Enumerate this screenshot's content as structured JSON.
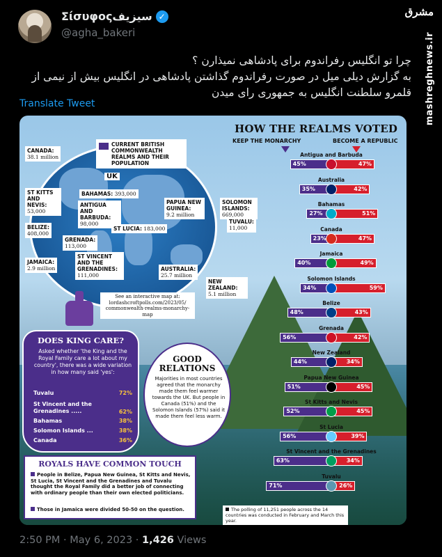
{
  "header": {
    "display_name": "Σίσυφοςسیزیف",
    "handle": "@agha_bakeri"
  },
  "watermark": {
    "logo": "مشرق",
    "url": "mashreghnews.ir"
  },
  "tweet": {
    "line1": "چرا تو انگلیس رفراندوم برای پادشاهی نمیذارن ؟",
    "line2": "به گزارش دیلی میل در صورت رفراندوم گذاشتن پادشاهی در انگلیس بیش از نیمی از قلمرو سلطنت انگلیس به جمهوری رای میدن",
    "translate_label": "Translate Tweet"
  },
  "infographic": {
    "map": {
      "legend": "Current British Commonwealth realms and their population",
      "uk": "UK",
      "labels": [
        {
          "name": "Canada:",
          "pop": "38.1 million"
        },
        {
          "name": "St Kitts and Nevis:",
          "pop": "53,000"
        },
        {
          "name": "Bahamas:",
          "pop": "393,000"
        },
        {
          "name": "Antigua and Barbuda:",
          "pop": "98,000"
        },
        {
          "name": "St Lucia:",
          "pop": "183,000"
        },
        {
          "name": "Belize:",
          "pop": "408,000"
        },
        {
          "name": "Grenada:",
          "pop": "113,000"
        },
        {
          "name": "Jamaica:",
          "pop": "2.9 million"
        },
        {
          "name": "St Vincent and the Grenadines:",
          "pop": "111,000"
        },
        {
          "name": "Papua New Guinea:",
          "pop": "9.2 million"
        },
        {
          "name": "Solomon Islands:",
          "pop": "669,000"
        },
        {
          "name": "Tuvalu:",
          "pop": "11,000"
        },
        {
          "name": "Australia:",
          "pop": "25.7 million"
        },
        {
          "name": "New Zealand:",
          "pop": "5.1 million"
        }
      ],
      "link": "See an interactive map at: lordashcroftpolls.com/2023/05/ commonwealth-realms-monarchy-map"
    },
    "chart_data": {
      "type": "bar",
      "title": "HOW THE REALMS VOTED",
      "keep_label": "KEEP THE MONARCHY",
      "republic_label": "BECOME A REPUBLIC",
      "categories": [
        "Antigua and Barbuda",
        "Australia",
        "Bahamas",
        "Canada",
        "Jamaica",
        "Solomon Islands",
        "Belize",
        "Grenada",
        "New Zealand",
        "Papua New Guinea",
        "St Kitts and Nevis",
        "St Lucia",
        "St Vincent and the Grenadines",
        "Tuvalu"
      ],
      "series": [
        {
          "name": "KEEP THE MONARCHY",
          "values": [
            45,
            35,
            27,
            23,
            40,
            34,
            48,
            56,
            44,
            51,
            52,
            56,
            63,
            71
          ]
        },
        {
          "name": "BECOME A REPUBLIC",
          "values": [
            47,
            42,
            51,
            47,
            49,
            59,
            43,
            42,
            34,
            45,
            45,
            39,
            34,
            26
          ]
        }
      ],
      "keep_labels": [
        "45%",
        "35%",
        "27%",
        "23%",
        "40%",
        "34%",
        "48%",
        "56%",
        "44%",
        "51%",
        "52%",
        "56%",
        "63%",
        "71%"
      ],
      "rep_labels": [
        "47%",
        "42%",
        "51%",
        "47%",
        "49%",
        "59%",
        "43%",
        "42%",
        "34%",
        "45%",
        "45%",
        "39%",
        "34%",
        "26%"
      ],
      "colors": {
        "keep": "#4b2e8a",
        "republic": "#d61f2c"
      }
    },
    "king": {
      "title": "DOES KING CARE?",
      "intro": "Asked whether 'the King and the Royal Family care a lot about my country', there was a wide variation in how many said 'yes':",
      "rows": [
        {
          "name": "Tuvalu",
          "pct": "72%"
        },
        {
          "name": "St Vincent and the Grenadines .....",
          "pct": "62%"
        },
        {
          "name": "Bahamas",
          "pct": "38%"
        },
        {
          "name": "Solomon Islands ...",
          "pct": "38%"
        },
        {
          "name": "Canada",
          "pct": "36%"
        }
      ]
    },
    "relations": {
      "title": "GOOD RELATIONS",
      "text": "Majorities in most countries agreed that the monarchy made them feel warmer towards the UK. But people in Canada (51%) and the Solomon Islands (57%) said it made them feel less warm."
    },
    "royals": {
      "title": "ROYALS HAVE COMMON TOUCH",
      "p1": "People in Belize, Papua New Guinea, St Kitts and Nevis, St Lucia, St Vincent and the Grenadines and Tuvalu thought the Royal Family did a better job of connecting with ordinary people than their own elected politicians.",
      "p2": "Those in Jamaica were divided 50-50 on the question."
    },
    "poll_note": "The polling of 11,251 people across the 14 countries was conducted in February and March this year."
  },
  "meta": {
    "time": "2:50 PM · May 6, 2023 · ",
    "views_count": "1,426",
    "views_label": " Views"
  }
}
